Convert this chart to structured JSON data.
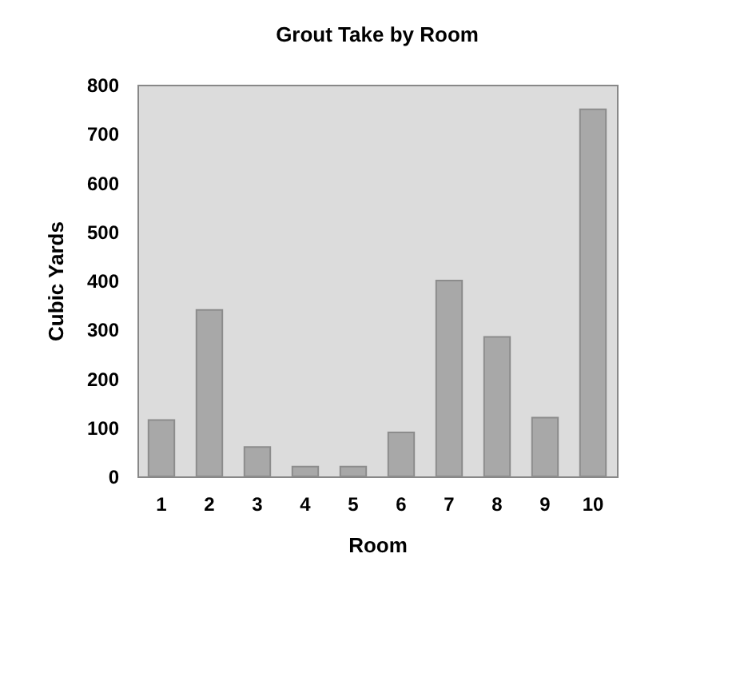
{
  "chart_data": {
    "type": "bar",
    "title": "Grout Take by Room",
    "xlabel": "Room",
    "ylabel": "Cubic Yards",
    "categories": [
      "1",
      "2",
      "3",
      "4",
      "5",
      "6",
      "7",
      "8",
      "9",
      "10"
    ],
    "values": [
      115,
      340,
      60,
      20,
      20,
      90,
      400,
      285,
      120,
      750
    ],
    "color": "#a8a8a8",
    "ylim": [
      0,
      800
    ],
    "yticks": [
      0,
      100,
      200,
      300,
      400,
      500,
      600,
      700,
      800
    ]
  }
}
